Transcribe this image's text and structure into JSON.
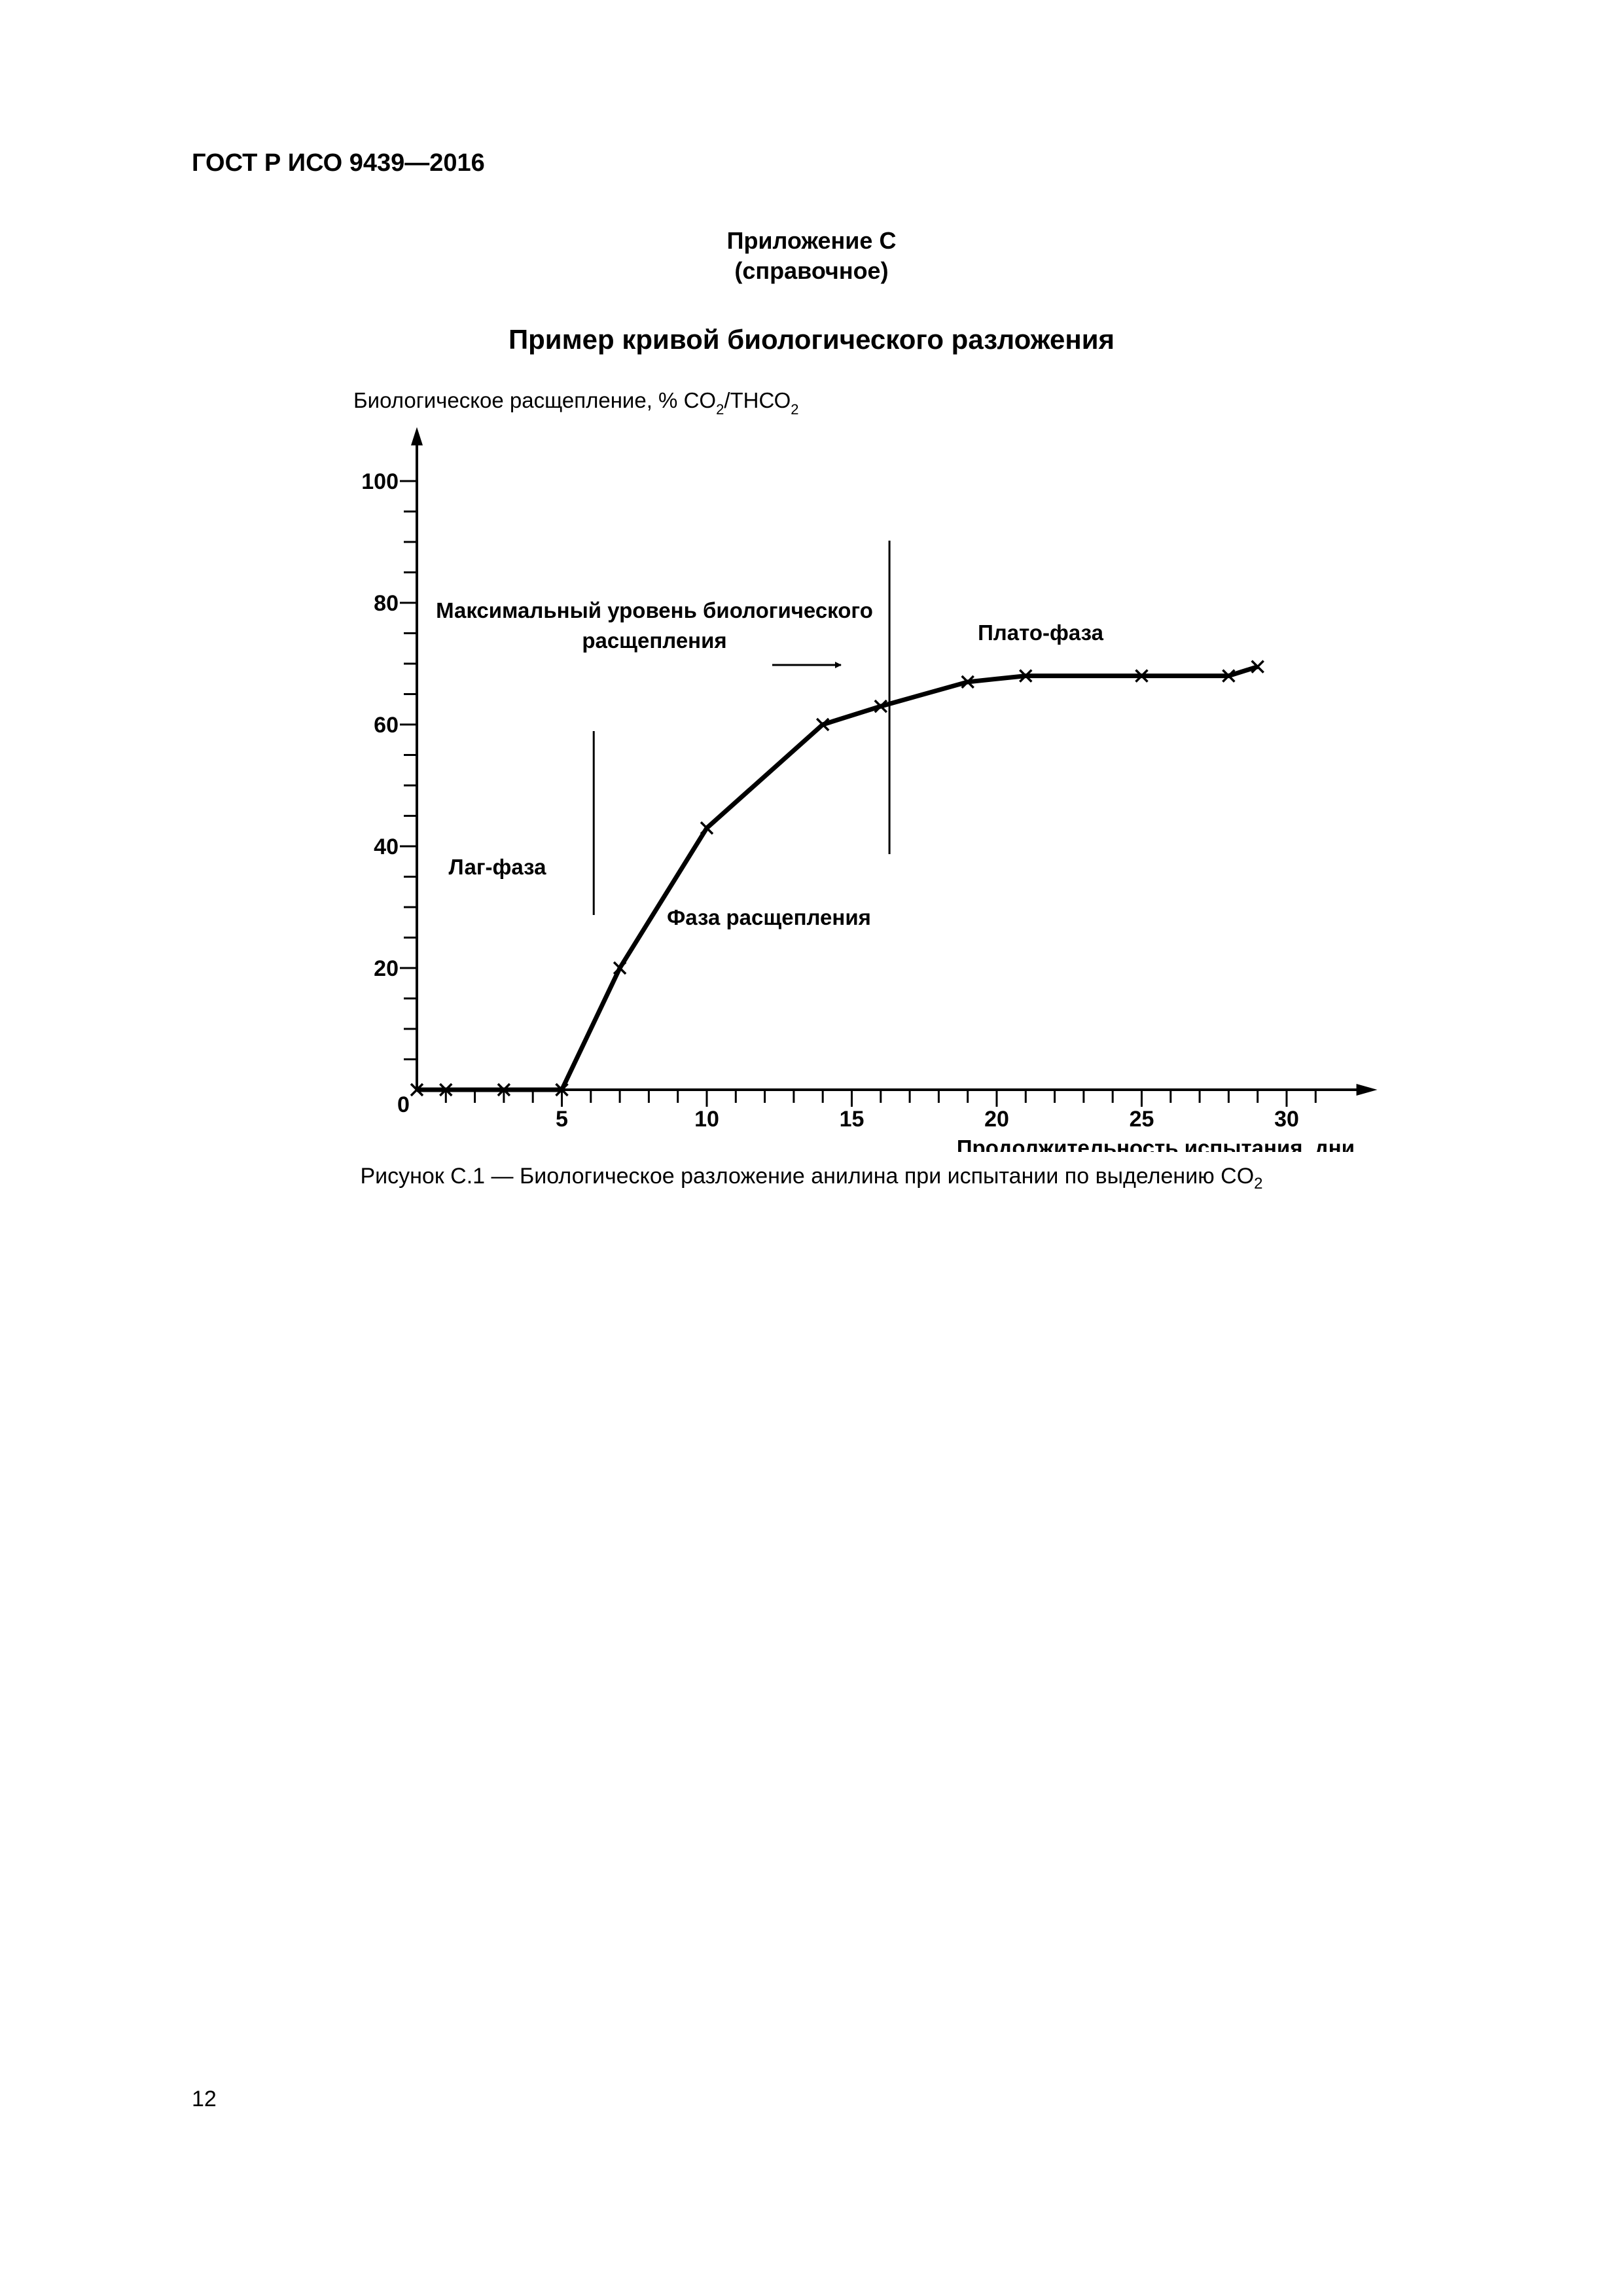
{
  "document": {
    "header": "ГОСТ Р ИСО 9439—2016",
    "appendix_label": "Приложение С",
    "appendix_type": "(справочное)",
    "section_title": "Пример кривой биологического разложения",
    "caption_text": "Рисунок С.1 — Биологическое разложение анилина при испытании по выделению CO",
    "caption_sub": "2",
    "page_number": "12"
  },
  "chart_data": {
    "type": "line",
    "ylabel_main": "Биологическое расщепление, % CO",
    "ylabel_sub1": "2",
    "ylabel_mid": "/ТНСО",
    "ylabel_sub2": "2",
    "xlabel": "Продолжительность испытания, дни",
    "origin_label": "0",
    "xlim": [
      0,
      32
    ],
    "ylim": [
      0,
      105
    ],
    "x_ticks": [
      5,
      10,
      15,
      20,
      25,
      30
    ],
    "y_ticks": [
      20,
      40,
      60,
      80,
      100
    ],
    "grid": false,
    "series": [
      {
        "x": [
          0,
          1,
          3,
          5,
          7,
          10,
          14,
          16,
          19,
          21,
          25,
          28,
          29
        ],
        "y": [
          0,
          0,
          0,
          0,
          20,
          43,
          60,
          63,
          67,
          68,
          68,
          68,
          69.5
        ],
        "marker": "x",
        "color": "#000000"
      }
    ],
    "phase_lines_x": [
      6.1,
      16.3
    ],
    "annotations": {
      "lag_phase": "Лаг-фаза",
      "degradation_phase": "Фаза расщепления",
      "plateau_phase": "Плато-фаза",
      "max_level_line1": "Максимальный уровень биологического",
      "max_level_line2": "расщепления"
    }
  }
}
